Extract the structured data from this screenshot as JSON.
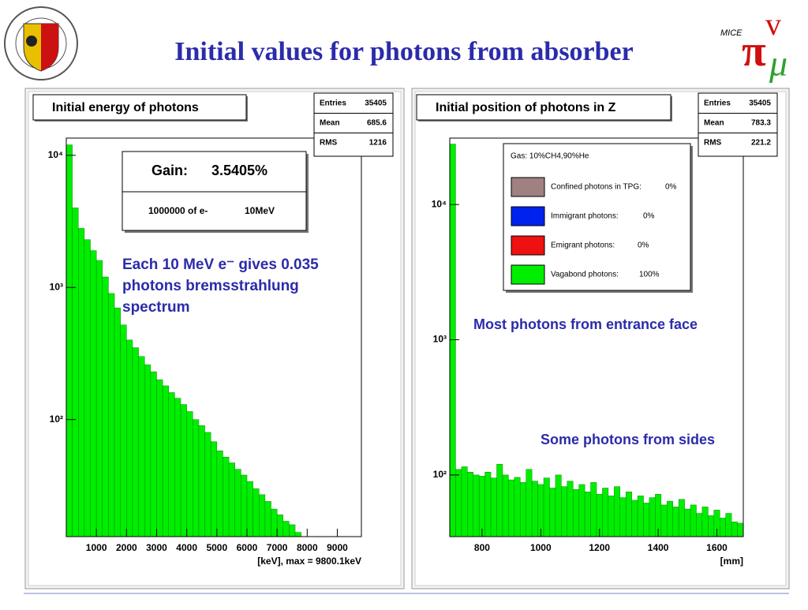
{
  "header": {
    "title": "Initial values for photons from absorber"
  },
  "chart_data": [
    {
      "type": "histogram",
      "title": "Initial energy of  photons",
      "color": "#00ee00",
      "x_label": "[keV], max =  9800.1keV",
      "bins": [
        0,
        200,
        400,
        600,
        800,
        1000,
        1200,
        1400,
        1600,
        1800,
        2000,
        2200,
        2400,
        2600,
        2800,
        3000,
        3200,
        3400,
        3600,
        3800,
        4000,
        4200,
        4400,
        4600,
        4800,
        5000,
        5200,
        5400,
        5600,
        5800,
        6000,
        6200,
        6400,
        6600,
        6800,
        7000,
        7200,
        7400,
        7600,
        7800,
        8000,
        8200,
        8400,
        8600,
        8800,
        9000,
        9200,
        9400,
        9600,
        9800
      ],
      "values": [
        12000,
        4000,
        2800,
        2300,
        1900,
        1600,
        1200,
        900,
        700,
        520,
        400,
        350,
        300,
        260,
        230,
        200,
        180,
        160,
        145,
        130,
        115,
        100,
        90,
        80,
        68,
        58,
        52,
        47,
        42,
        38,
        34,
        30,
        27,
        24,
        21,
        19,
        17,
        16,
        14,
        0,
        0,
        0,
        0,
        0,
        0,
        0,
        0,
        0,
        0
      ],
      "xlim": [
        0,
        9800
      ],
      "ylim": [
        13,
        13500
      ],
      "log_y": true,
      "xticks": [
        1000,
        2000,
        3000,
        4000,
        5000,
        6000,
        7000,
        8000,
        9000
      ],
      "yticks": [
        {
          "value": 100,
          "label": "10²"
        },
        {
          "value": 1000,
          "label": "10³"
        },
        {
          "value": 10000,
          "label": "10⁴"
        }
      ],
      "stats": {
        "labels": [
          "Entries",
          "Mean",
          "RMS"
        ],
        "values": [
          35405,
          685.6,
          1216
        ]
      },
      "gain_box": {
        "label": "Gain:",
        "value": "3.5405%",
        "note": "1000000 of e-",
        "energy": "10MeV"
      },
      "annotation": [
        "Each 10 MeV e⁻ gives 0.035",
        "photons bremsstrahlung",
        "spectrum"
      ]
    },
    {
      "type": "histogram",
      "title": "Initial position of photons in Z",
      "color": "#00ee00",
      "x_label": "[mm]",
      "bins": [
        690,
        710,
        730,
        750,
        770,
        790,
        810,
        830,
        850,
        870,
        890,
        910,
        930,
        950,
        970,
        990,
        1010,
        1030,
        1050,
        1070,
        1090,
        1110,
        1130,
        1150,
        1170,
        1190,
        1210,
        1230,
        1250,
        1270,
        1290,
        1310,
        1330,
        1350,
        1370,
        1390,
        1410,
        1430,
        1450,
        1470,
        1490,
        1510,
        1530,
        1550,
        1570,
        1590,
        1610,
        1630,
        1650,
        1670,
        1690
      ],
      "values": [
        28000,
        110,
        115,
        105,
        100,
        98,
        105,
        95,
        120,
        100,
        92,
        96,
        88,
        110,
        90,
        85,
        95,
        80,
        100,
        82,
        90,
        78,
        85,
        75,
        88,
        72,
        80,
        70,
        82,
        68,
        75,
        65,
        70,
        62,
        68,
        72,
        60,
        64,
        58,
        66,
        56,
        60,
        52,
        58,
        50,
        55,
        48,
        52,
        45,
        44
      ],
      "xlim": [
        690,
        1690
      ],
      "ylim": [
        35,
        31000
      ],
      "log_y": true,
      "xticks": [
        800,
        1000,
        1200,
        1400,
        1600
      ],
      "yticks": [
        {
          "value": 100,
          "label": "10²"
        },
        {
          "value": 1000,
          "label": "10³"
        },
        {
          "value": 10000,
          "label": "10⁴"
        }
      ],
      "stats": {
        "labels": [
          "Entries",
          "Mean",
          "RMS"
        ],
        "values": [
          35405,
          783.3,
          221.2
        ]
      },
      "legend": {
        "title": "Gas: 10%CH4,90%He",
        "items": [
          {
            "name": "Confined photons in TPG:",
            "color": "#a08080",
            "label": "0%"
          },
          {
            "name": "Immigrant photons:",
            "color": "#0022ee",
            "label": "0%"
          },
          {
            "name": "Emigrant photons:",
            "color": "#ee1111",
            "label": "0%"
          },
          {
            "name": "Vagabond photons:",
            "color": "#00ee00",
            "label": "100%"
          }
        ]
      },
      "annotations": [
        "Most photons from entrance face",
        "Some photons from sides"
      ]
    }
  ]
}
